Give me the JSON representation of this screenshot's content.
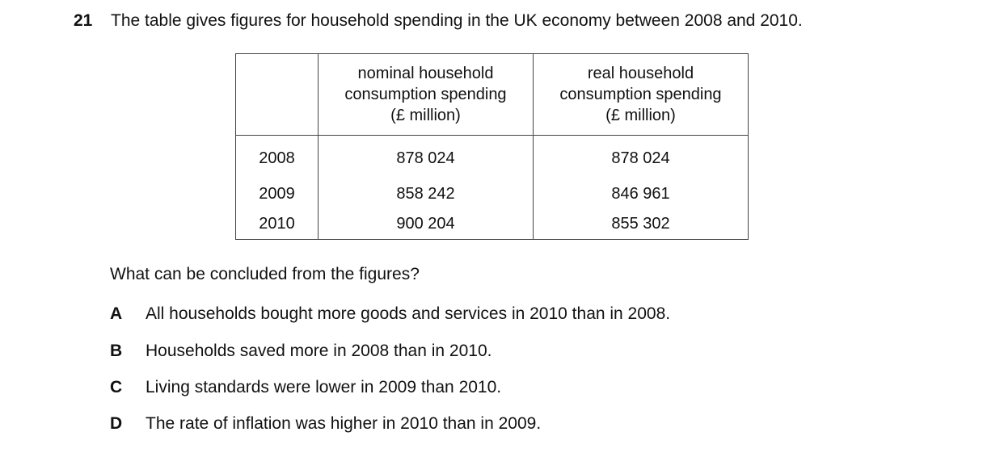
{
  "question": {
    "number": "21",
    "stem": "The table gives figures for household spending in the UK economy between 2008 and 2010."
  },
  "table": {
    "headers": {
      "year": "",
      "nominal": [
        "nominal household",
        "consumption spending",
        "(£ million)"
      ],
      "real": [
        "real household",
        "consumption spending",
        "(£ million)"
      ]
    },
    "rows": [
      {
        "year": "2008",
        "nominal": "878 024",
        "real": "878 024"
      },
      {
        "year": "2009",
        "nominal": "858 242",
        "real": "846 961"
      },
      {
        "year": "2010",
        "nominal": "900 204",
        "real": "855 302"
      }
    ]
  },
  "prompt": "What can be concluded from the figures?",
  "options": [
    {
      "letter": "A",
      "text": "All households bought more goods and services in 2010 than in 2008."
    },
    {
      "letter": "B",
      "text": "Households saved more in 2008 than in 2010."
    },
    {
      "letter": "C",
      "text": "Living standards were lower in 2009 than 2010."
    },
    {
      "letter": "D",
      "text": "The rate of inflation was higher in 2010 than in 2009."
    }
  ]
}
